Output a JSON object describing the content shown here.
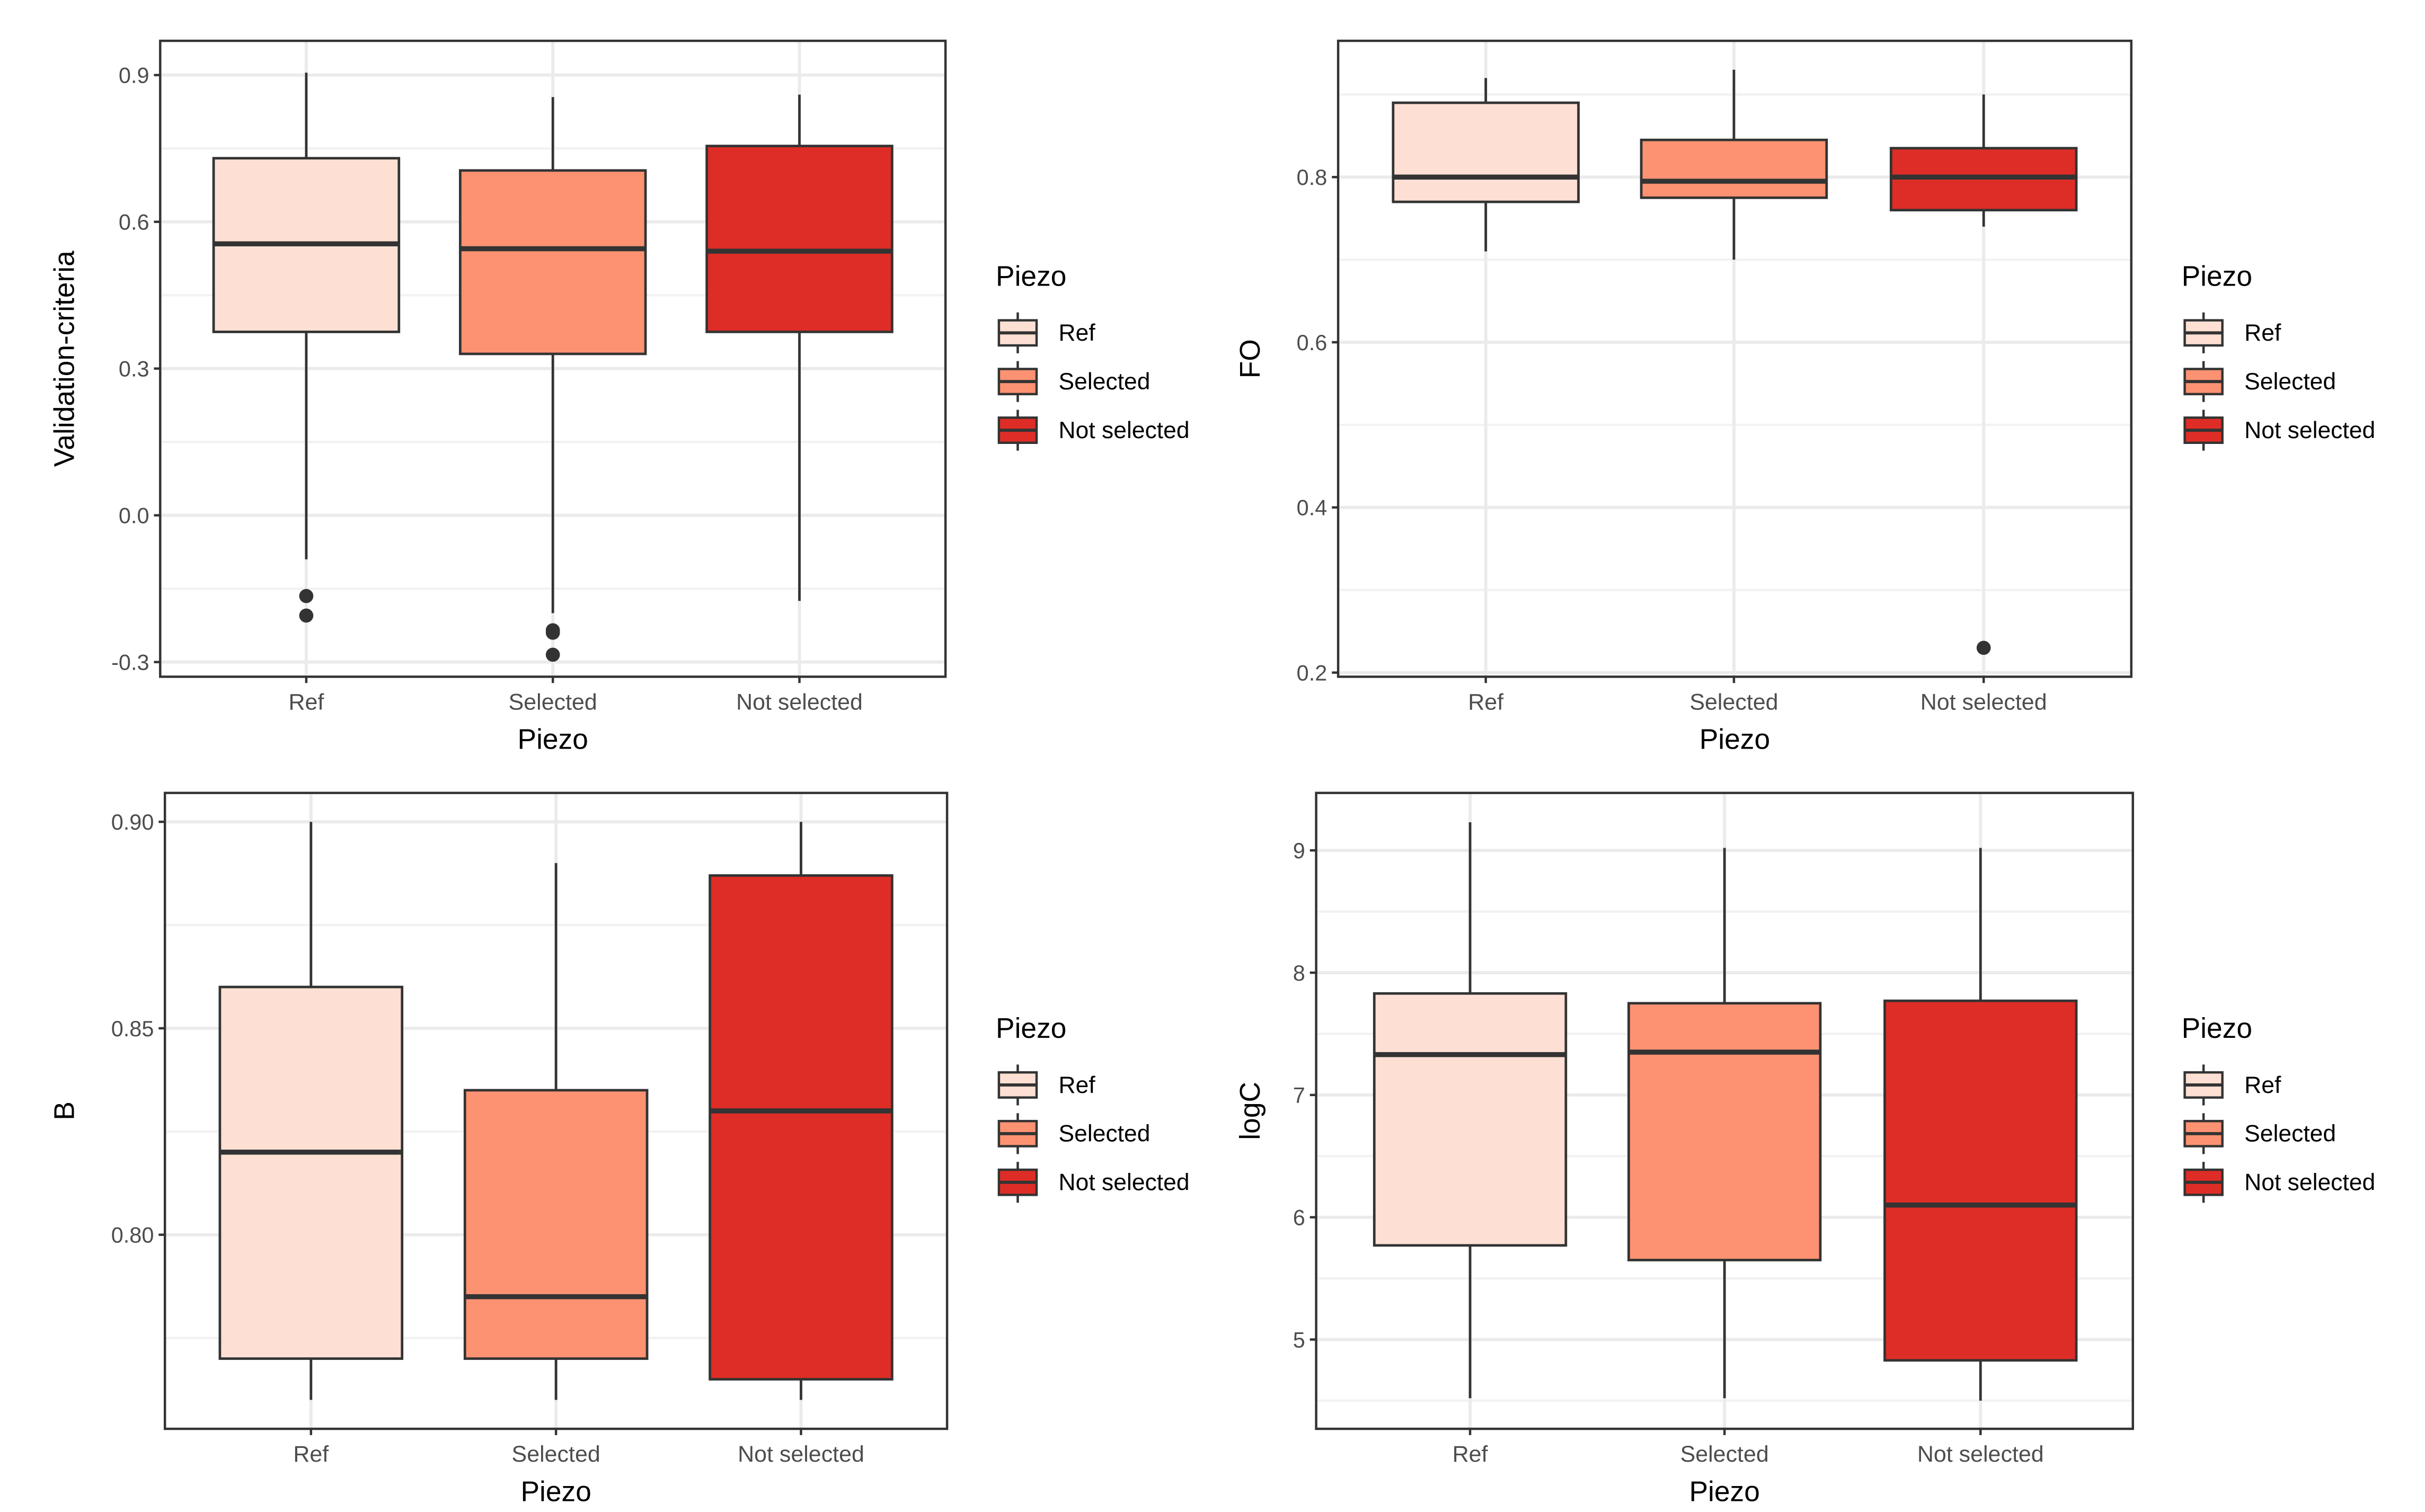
{
  "chart_data": [
    {
      "type": "box",
      "ylabel": "Validation-criteria",
      "xlabel": "Piezo",
      "categories": [
        "Ref",
        "Selected",
        "Not selected"
      ],
      "ylim": [
        -0.33,
        0.97
      ],
      "yticks": [
        -0.3,
        0.0,
        0.3,
        0.6,
        0.9
      ],
      "tick_format": "1",
      "boxes": [
        {
          "name": "Ref",
          "min": -0.09,
          "q1": 0.375,
          "median": 0.555,
          "q3": 0.73,
          "max": 0.905,
          "outliers": [
            -0.165,
            -0.205
          ]
        },
        {
          "name": "Selected",
          "min": -0.2,
          "q1": 0.33,
          "median": 0.545,
          "q3": 0.705,
          "max": 0.855,
          "outliers": [
            -0.235,
            -0.24,
            -0.285
          ]
        },
        {
          "name": "Not selected",
          "min": -0.175,
          "q1": 0.375,
          "median": 0.54,
          "q3": 0.755,
          "max": 0.86,
          "outliers": []
        }
      ],
      "legend": {
        "title": "Piezo",
        "items": [
          "Ref",
          "Selected",
          "Not selected"
        ]
      }
    },
    {
      "type": "box",
      "ylabel": "FO",
      "xlabel": "Piezo",
      "categories": [
        "Ref",
        "Selected",
        "Not selected"
      ],
      "ylim": [
        0.195,
        0.965
      ],
      "yticks": [
        0.2,
        0.4,
        0.6,
        0.8
      ],
      "tick_format": "1",
      "boxes": [
        {
          "name": "Ref",
          "min": 0.71,
          "q1": 0.77,
          "median": 0.8,
          "q3": 0.89,
          "max": 0.92,
          "outliers": []
        },
        {
          "name": "Selected",
          "min": 0.7,
          "q1": 0.775,
          "median": 0.795,
          "q3": 0.845,
          "max": 0.93,
          "outliers": []
        },
        {
          "name": "Not selected",
          "min": 0.74,
          "q1": 0.76,
          "median": 0.8,
          "q3": 0.835,
          "max": 0.9,
          "outliers": [
            0.23
          ]
        }
      ],
      "legend": {
        "title": "Piezo",
        "items": [
          "Ref",
          "Selected",
          "Not selected"
        ]
      }
    },
    {
      "type": "box",
      "ylabel": "B",
      "xlabel": "Piezo",
      "categories": [
        "Ref",
        "Selected",
        "Not selected"
      ],
      "ylim": [
        0.753,
        0.907
      ],
      "yticks": [
        0.8,
        0.85,
        0.9
      ],
      "tick_format": "2",
      "boxes": [
        {
          "name": "Ref",
          "min": 0.76,
          "q1": 0.77,
          "median": 0.82,
          "q3": 0.86,
          "max": 0.9,
          "outliers": []
        },
        {
          "name": "Selected",
          "min": 0.76,
          "q1": 0.77,
          "median": 0.785,
          "q3": 0.835,
          "max": 0.89,
          "outliers": []
        },
        {
          "name": "Not selected",
          "min": 0.76,
          "q1": 0.765,
          "median": 0.83,
          "q3": 0.887,
          "max": 0.9,
          "outliers": []
        }
      ],
      "legend": {
        "title": "Piezo",
        "items": [
          "Ref",
          "Selected",
          "Not selected"
        ]
      }
    },
    {
      "type": "box",
      "ylabel": "logC",
      "xlabel": "Piezo",
      "categories": [
        "Ref",
        "Selected",
        "Not selected"
      ],
      "ylim": [
        4.27,
        9.47
      ],
      "yticks": [
        5,
        6,
        7,
        8,
        9
      ],
      "tick_format": "0",
      "boxes": [
        {
          "name": "Ref",
          "min": 4.52,
          "q1": 5.77,
          "median": 7.33,
          "q3": 7.83,
          "max": 9.23,
          "outliers": []
        },
        {
          "name": "Selected",
          "min": 4.52,
          "q1": 5.65,
          "median": 7.35,
          "q3": 7.75,
          "max": 9.02,
          "outliers": []
        },
        {
          "name": "Not selected",
          "min": 4.5,
          "q1": 4.83,
          "median": 6.1,
          "q3": 7.77,
          "max": 9.02,
          "outliers": []
        }
      ],
      "legend": {
        "title": "Piezo",
        "items": [
          "Ref",
          "Selected",
          "Not selected"
        ]
      }
    }
  ],
  "colors": {
    "Ref": "#fde0d3",
    "Selected": "#fc9272",
    "Not selected": "#de2d26"
  }
}
